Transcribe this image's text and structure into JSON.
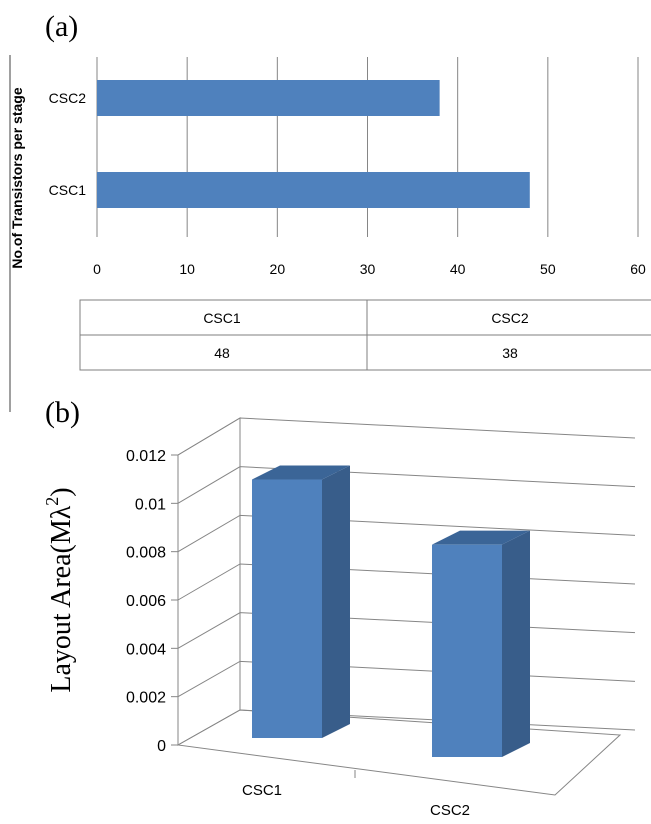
{
  "panel_a": {
    "label": "(a)"
  },
  "panel_b": {
    "label": "(b)"
  },
  "table": {
    "headers": [
      "CSC1",
      "CSC2"
    ],
    "values": [
      "48",
      "38"
    ]
  },
  "colors": {
    "bar_front": "#4f81bd",
    "bar_side": "#385d8a",
    "bar_top": "#3b6597",
    "grid": "#868686"
  },
  "chart_data": [
    {
      "type": "bar",
      "orientation": "horizontal",
      "ylabel": "No.of Transistors per stage",
      "xlabel": "",
      "categories": [
        "CSC1",
        "CSC2"
      ],
      "values": [
        48,
        38
      ],
      "xlim": [
        0,
        60
      ],
      "xticks": [
        "0",
        "10",
        "20",
        "30",
        "40",
        "50",
        "60"
      ],
      "grid": true,
      "data_table": true
    },
    {
      "type": "bar",
      "style": "3d-column",
      "ylabel_prefix": "Layout Area(Mλ",
      "ylabel_sup": "2",
      "ylabel_suffix": ")",
      "xlabel": "",
      "categories": [
        "CSC1",
        "CSC2"
      ],
      "values": [
        0.0112,
        0.0092
      ],
      "ylim": [
        0,
        0.012
      ],
      "yticks": [
        "0",
        "0.002",
        "0.004",
        "0.006",
        "0.008",
        "0.01",
        "0.012"
      ],
      "grid": true
    }
  ]
}
